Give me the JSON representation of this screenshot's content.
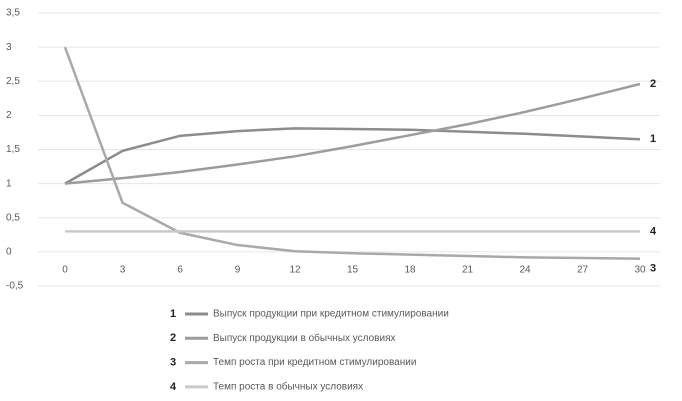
{
  "chart_data": {
    "type": "line",
    "x": [
      0,
      3,
      6,
      9,
      12,
      15,
      18,
      21,
      24,
      27,
      30
    ],
    "xlim": [
      0,
      30
    ],
    "xticks": [
      0,
      3,
      6,
      9,
      12,
      15,
      18,
      21,
      24,
      27,
      30
    ],
    "ylim": [
      -0.5,
      3.5
    ],
    "yticks": [
      {
        "value": -0.5,
        "label": "-0,5"
      },
      0,
      {
        "value": 0.5,
        "label": "0,5"
      },
      1,
      {
        "value": 1.5,
        "label": "1,5"
      },
      2,
      {
        "value": 2.5,
        "label": "2,5"
      },
      3,
      {
        "value": 3.5,
        "label": "3,5"
      }
    ],
    "grid": true,
    "series": [
      {
        "key": "1",
        "name": "Выпуск продукции при кредитном стимулировании",
        "color": "#8c8c8c",
        "values": [
          1,
          1.48,
          1.7,
          1.77,
          1.81,
          1.8,
          1.79,
          1.76,
          1.73,
          1.69,
          1.65
        ]
      },
      {
        "key": "2",
        "name": "Выпуск продукции в обычных условиях",
        "color": "#9c9c9c",
        "values": [
          1,
          1.08,
          1.17,
          1.28,
          1.4,
          1.55,
          1.71,
          1.87,
          2.05,
          2.25,
          2.46
        ]
      },
      {
        "key": "3",
        "name": "Темп роста при кредитном стимулировании",
        "color": "#a9a9a9",
        "values": [
          3,
          0.72,
          0.28,
          0.1,
          0.01,
          -0.02,
          -0.04,
          -0.06,
          -0.08,
          -0.09,
          -0.1
        ]
      },
      {
        "key": "4",
        "name": "Темп роста в обычных условиях",
        "color": "#c9c9c9",
        "values": [
          0.3,
          0.3,
          0.3,
          0.3,
          0.3,
          0.3,
          0.3,
          0.3,
          0.3,
          0.3,
          0.3
        ]
      }
    ]
  }
}
